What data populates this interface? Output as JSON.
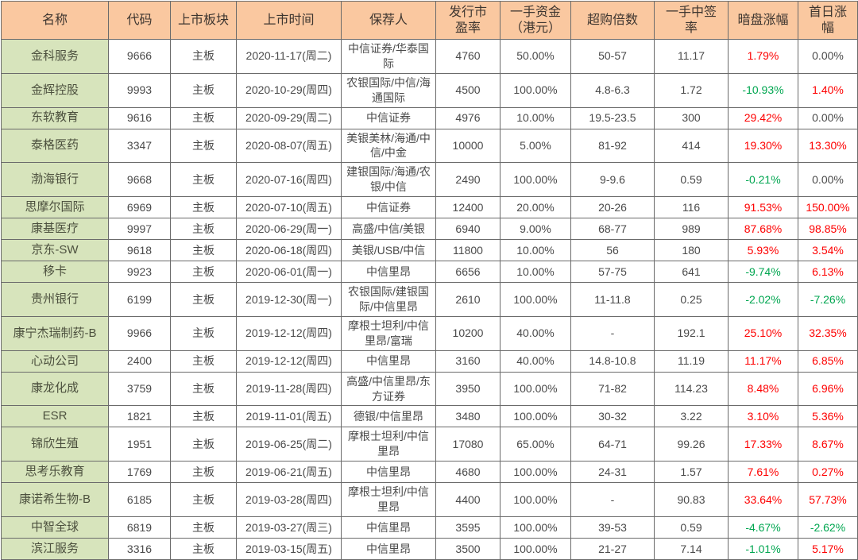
{
  "table": {
    "colors": {
      "header_bg": "#fac8a0",
      "name_column_bg": "#d7e4bc",
      "positive_red": "#fe0000",
      "negative_green": "#00a650"
    },
    "columns": [
      {
        "key": "name",
        "label": "名称"
      },
      {
        "key": "code",
        "label": "代码"
      },
      {
        "key": "board",
        "label": "上市板块"
      },
      {
        "key": "date",
        "label": "上市时间"
      },
      {
        "key": "sponsor",
        "label": "保荐人"
      },
      {
        "key": "pe",
        "label": "发行市\n盈率"
      },
      {
        "key": "lot_capital",
        "label": "一手资金\n（港元）"
      },
      {
        "key": "oversub",
        "label": "超购倍数"
      },
      {
        "key": "win_rate",
        "label": "一手中签\n率"
      },
      {
        "key": "dark",
        "label": "暗盘涨幅"
      },
      {
        "key": "first",
        "label": "首日涨\n幅"
      }
    ],
    "rows": [
      {
        "name": "金科服务",
        "code": "9666",
        "board": "主板",
        "date": "2020-11-17(周二)",
        "sponsor": "中信证券/华泰国际",
        "pe": "4760",
        "lot_capital": "50.00%",
        "oversub": "50-57",
        "win_rate": "11.17",
        "dark": "1.79%",
        "dark_color": "red",
        "first": "0.00%",
        "first_color": "dark"
      },
      {
        "name": "金辉控股",
        "code": "9993",
        "board": "主板",
        "date": "2020-10-29(周四)",
        "sponsor": "农银国际/中信/海通国际",
        "pe": "4500",
        "lot_capital": "100.00%",
        "oversub": "4.8-6.3",
        "win_rate": "1.72",
        "dark": "-10.93%",
        "dark_color": "green",
        "first": "1.40%",
        "first_color": "red"
      },
      {
        "name": "东软教育",
        "code": "9616",
        "board": "主板",
        "date": "2020-09-29(周二)",
        "sponsor": "中信证券",
        "pe": "4976",
        "lot_capital": "10.00%",
        "oversub": "19.5-23.5",
        "win_rate": "300",
        "dark": "29.42%",
        "dark_color": "red",
        "first": "0.00%",
        "first_color": "dark"
      },
      {
        "name": "泰格医药",
        "code": "3347",
        "board": "主板",
        "date": "2020-08-07(周五)",
        "sponsor": "美银美林/海通/中信/中金",
        "pe": "10000",
        "lot_capital": "5.00%",
        "oversub": "81-92",
        "win_rate": "414",
        "dark": "19.30%",
        "dark_color": "red",
        "first": "13.30%",
        "first_color": "red"
      },
      {
        "name": "渤海银行",
        "code": "9668",
        "board": "主板",
        "date": "2020-07-16(周四)",
        "sponsor": "建银国际/海通/农银/中信",
        "pe": "2490",
        "lot_capital": "100.00%",
        "oversub": "9-9.6",
        "win_rate": "0.59",
        "dark": "-0.21%",
        "dark_color": "green",
        "first": "0.00%",
        "first_color": "dark"
      },
      {
        "name": "思摩尔国际",
        "code": "6969",
        "board": "主板",
        "date": "2020-07-10(周五)",
        "sponsor": "中信证券",
        "pe": "12400",
        "lot_capital": "20.00%",
        "oversub": "20-26",
        "win_rate": "116",
        "dark": "91.53%",
        "dark_color": "red",
        "first": "150.00%",
        "first_color": "red"
      },
      {
        "name": "康基医疗",
        "code": "9997",
        "board": "主板",
        "date": "2020-06-29(周一)",
        "sponsor": "高盛/中信/美银",
        "pe": "6940",
        "lot_capital": "9.00%",
        "oversub": "68-77",
        "win_rate": "989",
        "dark": "87.68%",
        "dark_color": "red",
        "first": "98.85%",
        "first_color": "red"
      },
      {
        "name": "京东-SW",
        "code": "9618",
        "board": "主板",
        "date": "2020-06-18(周四)",
        "sponsor": "美银/USB/中信",
        "pe": "11800",
        "lot_capital": "10.00%",
        "oversub": "56",
        "win_rate": "180",
        "dark": "5.93%",
        "dark_color": "red",
        "first": "3.54%",
        "first_color": "red"
      },
      {
        "name": "移卡",
        "code": "9923",
        "board": "主板",
        "date": "2020-06-01(周一)",
        "sponsor": "中信里昂",
        "pe": "6656",
        "lot_capital": "10.00%",
        "oversub": "57-75",
        "win_rate": "641",
        "dark": "-9.74%",
        "dark_color": "green",
        "first": "6.13%",
        "first_color": "red"
      },
      {
        "name": "贵州银行",
        "code": "6199",
        "board": "主板",
        "date": "2019-12-30(周一)",
        "sponsor": "农银国际/建银国际/中信里昂",
        "pe": "2610",
        "lot_capital": "100.00%",
        "oversub": "11-11.8",
        "win_rate": "0.25",
        "dark": "-2.02%",
        "dark_color": "green",
        "first": "-7.26%",
        "first_color": "green"
      },
      {
        "name": "康宁杰瑞制药-B",
        "code": "9966",
        "board": "主板",
        "date": "2019-12-12(周四)",
        "sponsor": "摩根士坦利/中信里昂/富瑞",
        "pe": "10200",
        "lot_capital": "40.00%",
        "oversub": "-",
        "win_rate": "192.1",
        "dark": "25.10%",
        "dark_color": "red",
        "first": "32.35%",
        "first_color": "red"
      },
      {
        "name": "心动公司",
        "code": "2400",
        "board": "主板",
        "date": "2019-12-12(周四)",
        "sponsor": "中信里昂",
        "pe": "3160",
        "lot_capital": "40.00%",
        "oversub": "14.8-10.8",
        "win_rate": "11.19",
        "dark": "11.17%",
        "dark_color": "red",
        "first": "6.85%",
        "first_color": "red"
      },
      {
        "name": "康龙化成",
        "code": "3759",
        "board": "主板",
        "date": "2019-11-28(周四)",
        "sponsor": "高盛/中信里昂/东方证券",
        "pe": "3950",
        "lot_capital": "100.00%",
        "oversub": "71-82",
        "win_rate": "114.23",
        "dark": "8.48%",
        "dark_color": "red",
        "first": "6.96%",
        "first_color": "red"
      },
      {
        "name": "ESR",
        "code": "1821",
        "board": "主板",
        "date": "2019-11-01(周五)",
        "sponsor": "德银/中信里昂",
        "pe": "3480",
        "lot_capital": "100.00%",
        "oversub": "30-32",
        "win_rate": "3.22",
        "dark": "3.10%",
        "dark_color": "red",
        "first": "5.36%",
        "first_color": "red"
      },
      {
        "name": "锦欣生殖",
        "code": "1951",
        "board": "主板",
        "date": "2019-06-25(周二)",
        "sponsor": "摩根士坦利/中信里昂",
        "pe": "17080",
        "lot_capital": "65.00%",
        "oversub": "64-71",
        "win_rate": "99.26",
        "dark": "17.33%",
        "dark_color": "red",
        "first": "8.67%",
        "first_color": "red"
      },
      {
        "name": "思考乐教育",
        "code": "1769",
        "board": "主板",
        "date": "2019-06-21(周五)",
        "sponsor": "中信里昂",
        "pe": "4680",
        "lot_capital": "100.00%",
        "oversub": "24-31",
        "win_rate": "1.57",
        "dark": "7.61%",
        "dark_color": "red",
        "first": "0.27%",
        "first_color": "red"
      },
      {
        "name": "康诺希生物-B",
        "code": "6185",
        "board": "主板",
        "date": "2019-03-28(周四)",
        "sponsor": "摩根士坦利/中信里昂",
        "pe": "4400",
        "lot_capital": "100.00%",
        "oversub": "-",
        "win_rate": "90.83",
        "dark": "33.64%",
        "dark_color": "red",
        "first": "57.73%",
        "first_color": "red"
      },
      {
        "name": "中智全球",
        "code": "6819",
        "board": "主板",
        "date": "2019-03-27(周三)",
        "sponsor": "中信里昂",
        "pe": "3595",
        "lot_capital": "100.00%",
        "oversub": "39-53",
        "win_rate": "0.59",
        "dark": "-4.67%",
        "dark_color": "green",
        "first": "-2.62%",
        "first_color": "green"
      },
      {
        "name": "滨江服务",
        "code": "3316",
        "board": "主板",
        "date": "2019-03-15(周五)",
        "sponsor": "中信里昂",
        "pe": "3500",
        "lot_capital": "100.00%",
        "oversub": "21-27",
        "win_rate": "7.14",
        "dark": "-1.01%",
        "dark_color": "green",
        "first": "5.17%",
        "first_color": "red"
      }
    ]
  }
}
